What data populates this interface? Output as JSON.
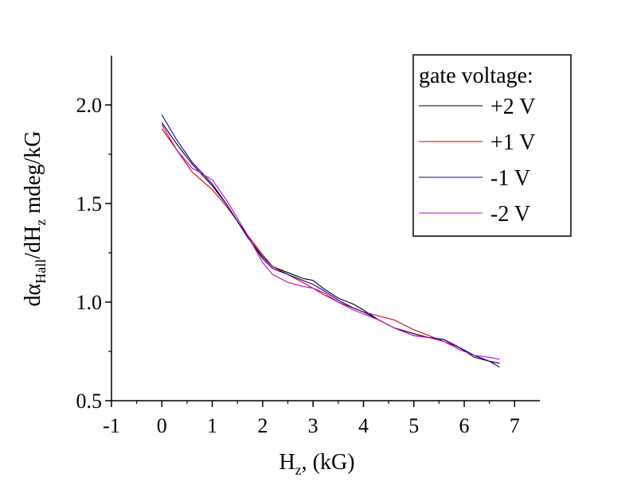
{
  "chart_data": {
    "type": "line",
    "xlabel": {
      "main": "H",
      "sub": "z",
      "rest": ", (kG)"
    },
    "ylabel": {
      "p1": "dα",
      "s1": "Hall",
      "p2": "/dH",
      "s2": "z",
      "p3": " mdeg/kG"
    },
    "xlim": [
      -1,
      7.5
    ],
    "ylim": [
      0.5,
      2.25
    ],
    "xticks": [
      -1,
      0,
      1,
      2,
      3,
      4,
      5,
      6,
      7
    ],
    "xtick_labels": [
      "-1",
      "0",
      "1",
      "2",
      "3",
      "4",
      "5",
      "6",
      "7"
    ],
    "yticks": [
      0.5,
      1.0,
      1.5,
      2.0
    ],
    "ytick_labels": [
      "0.5",
      "1.0",
      "1.5",
      "2.0"
    ],
    "grid": false,
    "legend_title": "gate voltage:",
    "legend_position": "top-right",
    "series": [
      {
        "name": "+2 V",
        "color": "#000000",
        "x": [
          0,
          0.3,
          0.6,
          1.0,
          1.3,
          1.7,
          2.0,
          2.2,
          2.5,
          2.8,
          3.0,
          3.2,
          3.5,
          3.8,
          4.0,
          4.3,
          4.6,
          5.0,
          5.3,
          5.6,
          5.9,
          6.2,
          6.5,
          6.7
        ],
        "y": [
          1.91,
          1.8,
          1.7,
          1.59,
          1.49,
          1.33,
          1.23,
          1.18,
          1.15,
          1.12,
          1.11,
          1.07,
          1.02,
          0.99,
          0.96,
          0.91,
          0.87,
          0.84,
          0.82,
          0.81,
          0.77,
          0.72,
          0.7,
          0.67
        ]
      },
      {
        "name": "+1 V",
        "color": "#cc0000",
        "x": [
          0,
          0.3,
          0.6,
          1.0,
          1.3,
          1.7,
          2.0,
          2.2,
          2.5,
          2.8,
          3.0,
          3.2,
          3.5,
          3.8,
          4.0,
          4.3,
          4.6,
          5.0,
          5.3,
          5.6,
          5.9,
          6.2,
          6.5,
          6.7
        ],
        "y": [
          1.88,
          1.77,
          1.66,
          1.57,
          1.48,
          1.34,
          1.24,
          1.18,
          1.14,
          1.1,
          1.07,
          1.04,
          1.0,
          0.97,
          0.95,
          0.93,
          0.91,
          0.86,
          0.83,
          0.8,
          0.77,
          0.73,
          0.7,
          0.69
        ]
      },
      {
        "name": "-1 V",
        "color": "#000099",
        "x": [
          0,
          0.3,
          0.6,
          1.0,
          1.3,
          1.7,
          2.0,
          2.2,
          2.5,
          2.8,
          3.0,
          3.2,
          3.5,
          3.8,
          4.0,
          4.3,
          4.6,
          5.0,
          5.3,
          5.6,
          5.9,
          6.2,
          6.5,
          6.7
        ],
        "y": [
          1.95,
          1.82,
          1.71,
          1.6,
          1.49,
          1.33,
          1.22,
          1.17,
          1.14,
          1.11,
          1.09,
          1.06,
          1.01,
          0.97,
          0.95,
          0.91,
          0.87,
          0.83,
          0.82,
          0.81,
          0.77,
          0.73,
          0.7,
          0.69
        ]
      },
      {
        "name": "-2 V",
        "color": "#cc00cc",
        "x": [
          0,
          0.3,
          0.6,
          1.0,
          1.3,
          1.7,
          2.0,
          2.2,
          2.5,
          2.8,
          3.0,
          3.2,
          3.5,
          3.8,
          4.0,
          4.3,
          4.6,
          5.0,
          5.3,
          5.6,
          5.9,
          6.2,
          6.5,
          6.7
        ],
        "y": [
          1.9,
          1.77,
          1.68,
          1.62,
          1.51,
          1.34,
          1.2,
          1.14,
          1.1,
          1.08,
          1.07,
          1.05,
          1.0,
          0.96,
          0.94,
          0.91,
          0.87,
          0.83,
          0.82,
          0.8,
          0.76,
          0.73,
          0.72,
          0.71
        ]
      }
    ]
  }
}
